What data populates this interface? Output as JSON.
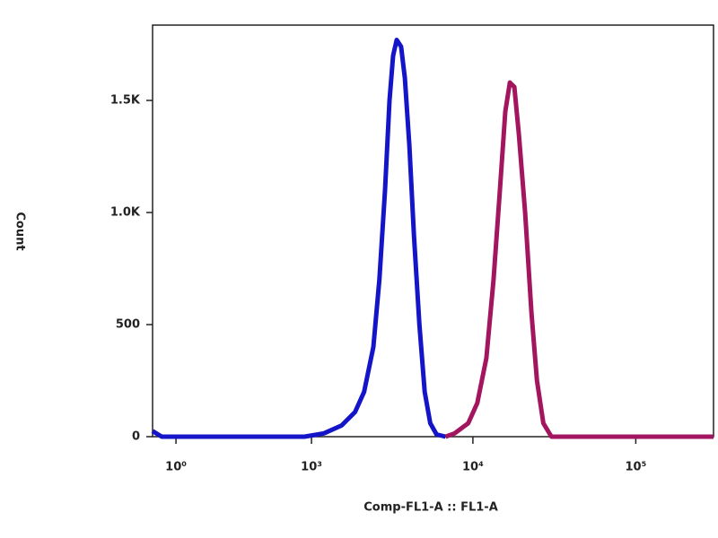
{
  "chart_data": {
    "type": "line",
    "x_label": "Comp-FL1-A :: FL1-A",
    "y_label": "Count",
    "x_scale": "biexponential",
    "xlim": [
      -100,
      300000
    ],
    "xticks": [
      {
        "value": 1,
        "label": "10⁰"
      },
      {
        "value": 1000,
        "label": "10³"
      },
      {
        "value": 10000,
        "label": "10⁴"
      },
      {
        "value": 100000,
        "label": "10⁵"
      }
    ],
    "ylim": [
      0,
      1836
    ],
    "yticks": [
      0,
      500,
      {
        "value": 1000,
        "label": "1.0K"
      },
      {
        "value": 1500,
        "label": "1.5K"
      }
    ],
    "grid": false,
    "series": [
      {
        "color": "#1414c8",
        "x": [
          -100,
          -60,
          900,
          1200,
          1550,
          1880,
          2140,
          2440,
          2660,
          2880,
          3070,
          3230,
          3400,
          3620,
          3820,
          4070,
          4340,
          4690,
          5060,
          5470,
          5980,
          6800
        ],
        "values": [
          25,
          0,
          0,
          15,
          50,
          110,
          200,
          400,
          700,
          1100,
          1500,
          1700,
          1770,
          1740,
          1600,
          1300,
          900,
          500,
          200,
          60,
          10,
          0
        ]
      },
      {
        "color": "#a3155f",
        "x": [
          6800,
          7730,
          9360,
          10640,
          12090,
          13390,
          14650,
          15810,
          16860,
          17970,
          19150,
          20940,
          22910,
          24740,
          27060,
          30360,
          300000
        ],
        "values": [
          0,
          15,
          60,
          150,
          350,
          700,
          1100,
          1450,
          1580,
          1560,
          1350,
          1000,
          550,
          250,
          60,
          0,
          0
        ]
      }
    ]
  }
}
